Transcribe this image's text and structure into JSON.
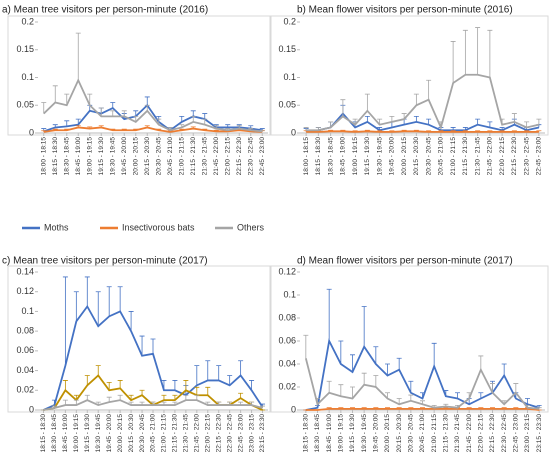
{
  "chart_data": [
    {
      "type": "line",
      "title": "a) Mean tree visitors per person-minute (2016)",
      "categories": [
        "18:00 - 18:15",
        "18:15 - 18:30",
        "18:30 - 18:45",
        "18:45 - 19:00",
        "19:00 - 19:15",
        "19:15 - 19:30",
        "19:30 - 19:45",
        "19:45 - 20:00",
        "20:00 - 20:15",
        "20:15 - 20:30",
        "20:30 - 20:45",
        "20:45 - 21:00",
        "21:00 - 21:15",
        "21:15 - 21:30",
        "21:30 - 21:45",
        "21:45 - 22:00",
        "22:00 - 22:15",
        "22:15 - 22:30",
        "22:30 - 22:45",
        "22:45 - 23:00"
      ],
      "ylim": [
        0,
        0.2
      ],
      "yticks": [
        0,
        0.05,
        0.1,
        0.15,
        0.2
      ],
      "series": [
        {
          "name": "Moths",
          "color": "#4472c4",
          "values": [
            0.003,
            0.01,
            0.012,
            0.015,
            0.04,
            0.035,
            0.045,
            0.025,
            0.03,
            0.05,
            0.02,
            0.005,
            0.02,
            0.03,
            0.025,
            0.01,
            0.01,
            0.01,
            0.008,
            0.005
          ],
          "errors": [
            0.005,
            0.005,
            0.01,
            0.01,
            0.01,
            0.01,
            0.01,
            0.01,
            0.01,
            0.015,
            0.01,
            0.005,
            0.01,
            0.01,
            0.01,
            0.005,
            0.005,
            0.005,
            0.005,
            0.003
          ]
        },
        {
          "name": "Insectivorous bats",
          "color": "#ed7d31",
          "values": [
            0.002,
            0.005,
            0.005,
            0.01,
            0.008,
            0.01,
            0.005,
            0.005,
            0.005,
            0.01,
            0.005,
            0.002,
            0.005,
            0.008,
            0.005,
            0.003,
            0.003,
            0.005,
            0.003,
            0.002
          ],
          "errors": [
            0.002,
            0.002,
            0.002,
            0.003,
            0.003,
            0.003,
            0.002,
            0.002,
            0.002,
            0.003,
            0.002,
            0.002,
            0.002,
            0.003,
            0.002,
            0.002,
            0.002,
            0.002,
            0.002,
            0.002
          ]
        },
        {
          "name": "Others",
          "color": "#a5a5a5",
          "values": [
            0.035,
            0.055,
            0.05,
            0.095,
            0.05,
            0.03,
            0.03,
            0.03,
            0.02,
            0.04,
            0.015,
            0.005,
            0.01,
            0.02,
            0.015,
            0.008,
            0.005,
            0.008,
            0.005,
            0.003
          ],
          "errors": [
            0.02,
            0.03,
            0.02,
            0.085,
            0.02,
            0.015,
            0.01,
            0.01,
            0.01,
            0.01,
            0.01,
            0.005,
            0.005,
            0.01,
            0.01,
            0.005,
            0.003,
            0.005,
            0.003,
            0.002
          ]
        }
      ]
    },
    {
      "type": "line",
      "title": "b) Mean flower visitors per person-minute (2016)",
      "categories": [
        "18:00 - 18:15",
        "18:15 - 18:30",
        "18:30 - 18:45",
        "18:45 - 19:00",
        "19:00 - 19:15",
        "19:15 - 19:30",
        "19:30 - 19:45",
        "19:45 - 20:00",
        "20:00 - 20:15",
        "20:15 - 20:30",
        "20:30 - 20:45",
        "20:45 - 21:00",
        "21:00 - 21:15",
        "21:15 - 21:30",
        "21:30 - 21:45",
        "21:45 - 22:00",
        "22:00 - 22:15",
        "22:15 - 22:30",
        "22:30 - 22:45",
        "22:45 - 23:00"
      ],
      "ylim": [
        0,
        0.2
      ],
      "yticks": [
        0,
        0.05,
        0.1,
        0.15,
        0.2
      ],
      "series": [
        {
          "color": "#4472c4",
          "values": [
            0.003,
            0.005,
            0.01,
            0.035,
            0.01,
            0.02,
            0.005,
            0.01,
            0.015,
            0.02,
            0.015,
            0.005,
            0.005,
            0.005,
            0.015,
            0.01,
            0.005,
            0.015,
            0.005,
            0.01
          ],
          "errors": [
            0.005,
            0.005,
            0.01,
            0.015,
            0.01,
            0.01,
            0.005,
            0.01,
            0.01,
            0.01,
            0.01,
            0.005,
            0.005,
            0.005,
            0.01,
            0.01,
            0.005,
            0.01,
            0.005,
            0.005
          ]
        },
        {
          "color": "#ed7d31",
          "values": [
            0.002,
            0.002,
            0.003,
            0.003,
            0.002,
            0.003,
            0.002,
            0.002,
            0.003,
            0.003,
            0.002,
            0.002,
            0.002,
            0.002,
            0.002,
            0.002,
            0.002,
            0.002,
            0.002,
            0.002
          ],
          "errors": [
            0.002,
            0.002,
            0.002,
            0.002,
            0.002,
            0.002,
            0.002,
            0.002,
            0.002,
            0.002,
            0.002,
            0.002,
            0.002,
            0.002,
            0.002,
            0.002,
            0.002,
            0.002,
            0.002,
            0.002
          ]
        },
        {
          "color": "#a5a5a5",
          "values": [
            0.005,
            0.005,
            0.01,
            0.03,
            0.015,
            0.04,
            0.015,
            0.02,
            0.025,
            0.05,
            0.06,
            0.01,
            0.09,
            0.105,
            0.105,
            0.1,
            0.015,
            0.02,
            0.01,
            0.015
          ],
          "errors": [
            0.005,
            0.005,
            0.01,
            0.03,
            0.01,
            0.03,
            0.01,
            0.01,
            0.01,
            0.02,
            0.035,
            0.01,
            0.075,
            0.08,
            0.085,
            0.085,
            0.01,
            0.015,
            0.01,
            0.01
          ]
        }
      ]
    },
    {
      "type": "line",
      "title": "c) Mean tree visitors per person-minute (2017)",
      "categories": [
        "18:15 - 18:30",
        "18:30 - 18:45",
        "18:45 - 19:00",
        "19:00 - 19:15",
        "19:15 - 19:30",
        "19:30 - 19:45",
        "19:45 - 20:00",
        "20:00 - 20:15",
        "20:15 - 20:30",
        "20:30 - 20:45",
        "20:45 - 21:00",
        "21:00 - 21:15",
        "21:15 - 21:30",
        "21:30 - 21:45",
        "21:45 - 22:00",
        "22:00 - 22:15",
        "22:15 - 22:30",
        "22:30 - 22:45",
        "22:45 - 23:00",
        "23:00 - 23:15",
        "23:15 - 23:30"
      ],
      "ylim": [
        0,
        0.14
      ],
      "yticks": [
        0,
        0.02,
        0.04,
        0.06,
        0.08,
        0.1,
        0.12,
        0.14
      ],
      "series": [
        {
          "color": "#4472c4",
          "values": [
            0,
            0.005,
            0.045,
            0.09,
            0.105,
            0.085,
            0.095,
            0.1,
            0.08,
            0.055,
            0.057,
            0.02,
            0.02,
            0.015,
            0.025,
            0.03,
            0.03,
            0.025,
            0.035,
            0.02,
            0.003
          ],
          "errors": [
            0,
            0.005,
            0.09,
            0.03,
            0.03,
            0.035,
            0.03,
            0.025,
            0.02,
            0.02,
            0.015,
            0.01,
            0.01,
            0.01,
            0.02,
            0.02,
            0.015,
            0.01,
            0.015,
            0.01,
            0.003
          ]
        },
        {
          "color": "#bf9000",
          "values": [
            0,
            0.002,
            0.02,
            0.01,
            0.025,
            0.035,
            0.02,
            0.022,
            0.01,
            0.015,
            0.005,
            0.01,
            0.01,
            0.02,
            0.015,
            0.015,
            0.005,
            0.005,
            0.012,
            0.005,
            0
          ],
          "errors": [
            0,
            0.002,
            0.01,
            0.005,
            0.01,
            0.01,
            0.008,
            0.008,
            0.005,
            0.005,
            0.003,
            0.005,
            0.005,
            0.01,
            0.008,
            0.008,
            0.003,
            0.003,
            0.005,
            0.003,
            0
          ]
        },
        {
          "color": "#a5a5a5",
          "values": [
            0,
            0.002,
            0.005,
            0.005,
            0.01,
            0.005,
            0.008,
            0.01,
            0.005,
            0.005,
            0.005,
            0.005,
            0.005,
            0.01,
            0.01,
            0.005,
            0.005,
            0.005,
            0.005,
            0.005,
            0.002
          ],
          "errors": [
            0,
            0.002,
            0.005,
            0.005,
            0.005,
            0.003,
            0.005,
            0.005,
            0.003,
            0.003,
            0.003,
            0.003,
            0.003,
            0.005,
            0.005,
            0.003,
            0.003,
            0.003,
            0.003,
            0.003,
            0.002
          ]
        }
      ]
    },
    {
      "type": "line",
      "title": "d) Mean flower visitors per person-minute (2017)",
      "categories": [
        "18:15 - 18:30",
        "18:30 - 18:45",
        "18:45 - 19:00",
        "19:00 - 19:15",
        "19:15 - 19:30",
        "19:30 - 19:45",
        "19:45 - 20:00",
        "20:00 - 20:15",
        "20:15 - 20:30",
        "20:30 - 20:45",
        "20:45 - 21:00",
        "21:00 - 21:15",
        "21:15 - 21:30",
        "21:30 - 21:45",
        "21:45 - 22:00",
        "22:00 - 22:15",
        "22:15 - 22:30",
        "22:30 - 22:45",
        "22:45 - 23:00",
        "23:00 - 23:15",
        "23:15 - 23:30"
      ],
      "ylim": [
        0,
        0.12
      ],
      "yticks": [
        0,
        0.02,
        0.04,
        0.06,
        0.08,
        0.1,
        0.12
      ],
      "series": [
        {
          "color": "#4472c4",
          "values": [
            0,
            0.002,
            0.06,
            0.04,
            0.033,
            0.055,
            0.04,
            0.03,
            0.035,
            0.015,
            0.01,
            0.038,
            0.012,
            0.01,
            0.005,
            0.01,
            0.015,
            0.03,
            0.01,
            0.005,
            0.002
          ],
          "errors": [
            0,
            0.002,
            0.045,
            0.02,
            0.015,
            0.035,
            0.015,
            0.01,
            0.01,
            0.01,
            0.005,
            0.02,
            0.005,
            0.005,
            0.005,
            0.005,
            0.01,
            0.01,
            0.005,
            0.005,
            0.002
          ]
        },
        {
          "color": "#ed7d31",
          "values": [
            0,
            0,
            0.001,
            0.001,
            0.001,
            0.001,
            0.001,
            0.001,
            0.001,
            0.001,
            0.001,
            0.001,
            0.001,
            0.001,
            0.001,
            0.001,
            0.001,
            0.001,
            0.001,
            0.001,
            0
          ],
          "errors": [
            0,
            0,
            0.001,
            0.001,
            0.001,
            0.001,
            0.001,
            0.001,
            0.001,
            0.001,
            0.001,
            0.001,
            0.001,
            0.001,
            0.001,
            0.001,
            0.001,
            0.001,
            0.001,
            0.001,
            0
          ]
        },
        {
          "color": "#a5a5a5",
          "values": [
            0.045,
            0.005,
            0.015,
            0.012,
            0.01,
            0.022,
            0.02,
            0.01,
            0.005,
            0.008,
            0.005,
            0.002,
            0.003,
            0.002,
            0.01,
            0.035,
            0.015,
            0.005,
            0.015,
            0.002,
            0.001
          ],
          "errors": [
            0.02,
            0.005,
            0.01,
            0.01,
            0.01,
            0.01,
            0.01,
            0.005,
            0.005,
            0.005,
            0.003,
            0.002,
            0.002,
            0.002,
            0.005,
            0.012,
            0.008,
            0.003,
            0.008,
            0.002,
            0.001
          ]
        }
      ]
    }
  ]
}
